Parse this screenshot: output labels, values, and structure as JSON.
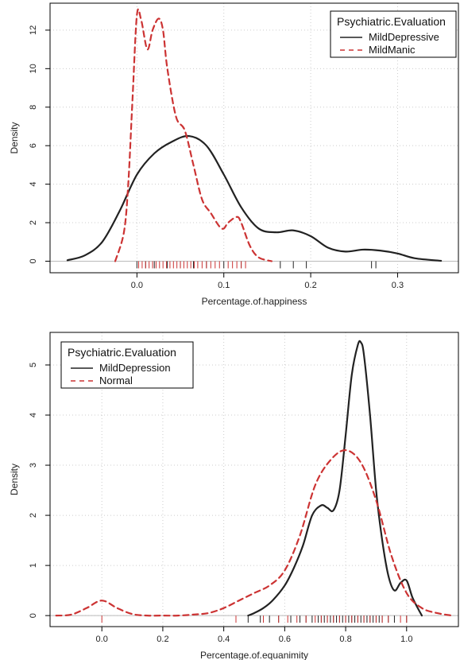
{
  "colors": {
    "series_solid": "#222222",
    "series_dashed": "#cc3333",
    "grid": "#cccccc",
    "baseline": "#bbbbbb"
  },
  "chart_data": [
    {
      "type": "line",
      "xlabel": "Percentage.of.happiness",
      "ylabel": "Density",
      "xlim": [
        -0.1,
        0.37
      ],
      "ylim": [
        -0.6,
        13.4
      ],
      "xticks": [
        0.0,
        0.1,
        0.2,
        0.3
      ],
      "xtick_labels": [
        "0.0",
        "0.1",
        "0.2",
        "0.3"
      ],
      "yticks": [
        0,
        2,
        4,
        6,
        8,
        10,
        12
      ],
      "ytick_labels": [
        "0",
        "2",
        "4",
        "6",
        "8",
        "10",
        "12"
      ],
      "grid": true,
      "legend": {
        "title": "Psychiatric.Evaluation",
        "position": "top-right"
      },
      "series": [
        {
          "name": "MildDepressive",
          "style": "solid",
          "x": [
            -0.08,
            -0.06,
            -0.04,
            -0.02,
            0.0,
            0.02,
            0.04,
            0.06,
            0.08,
            0.1,
            0.12,
            0.14,
            0.16,
            0.18,
            0.2,
            0.22,
            0.24,
            0.26,
            0.28,
            0.3,
            0.32,
            0.35
          ],
          "y": [
            0.05,
            0.3,
            1.0,
            2.6,
            4.5,
            5.6,
            6.2,
            6.5,
            6.0,
            4.5,
            2.8,
            1.7,
            1.5,
            1.6,
            1.3,
            0.7,
            0.5,
            0.6,
            0.55,
            0.4,
            0.15,
            0.02
          ]
        },
        {
          "name": "MildManic",
          "style": "dashed",
          "x": [
            -0.025,
            -0.015,
            -0.01,
            -0.005,
            0.0,
            0.005,
            0.012,
            0.018,
            0.025,
            0.03,
            0.035,
            0.045,
            0.055,
            0.065,
            0.075,
            0.085,
            0.095,
            0.1,
            0.105,
            0.115,
            0.12,
            0.13,
            0.14,
            0.155
          ],
          "y": [
            0.0,
            1.5,
            4.0,
            8.5,
            12.8,
            12.5,
            11.0,
            12.0,
            12.6,
            12.0,
            10.0,
            7.5,
            6.8,
            5.0,
            3.2,
            2.5,
            1.8,
            1.7,
            2.0,
            2.3,
            2.0,
            0.8,
            0.2,
            0.0
          ]
        }
      ],
      "rug": {
        "solid": [
          0.0,
          0.01,
          0.02,
          0.035,
          0.05,
          0.065,
          0.08,
          0.1,
          0.12,
          0.165,
          0.18,
          0.195,
          0.27,
          0.275
        ],
        "dashed": [
          0.002,
          0.006,
          0.01,
          0.014,
          0.018,
          0.022,
          0.026,
          0.03,
          0.034,
          0.038,
          0.042,
          0.046,
          0.05,
          0.054,
          0.058,
          0.062,
          0.066,
          0.07,
          0.075,
          0.08,
          0.085,
          0.09,
          0.095,
          0.105,
          0.11,
          0.115,
          0.12,
          0.125
        ]
      }
    },
    {
      "type": "line",
      "xlabel": "Percentage.of.equanimity",
      "ylabel": "Density",
      "xlim": [
        -0.17,
        1.17
      ],
      "ylim": [
        -0.22,
        5.65
      ],
      "xticks": [
        0.0,
        0.2,
        0.4,
        0.6,
        0.8,
        1.0
      ],
      "xtick_labels": [
        "0.0",
        "0.2",
        "0.4",
        "0.6",
        "0.8",
        "1.0"
      ],
      "yticks": [
        0,
        1,
        2,
        3,
        4,
        5
      ],
      "ytick_labels": [
        "0",
        "1",
        "2",
        "3",
        "4",
        "5"
      ],
      "grid": true,
      "legend": {
        "title": "Psychiatric.Evaluation",
        "position": "top-left"
      },
      "series": [
        {
          "name": "MildDepression",
          "style": "solid",
          "x": [
            0.48,
            0.5,
            0.53,
            0.56,
            0.6,
            0.63,
            0.66,
            0.69,
            0.72,
            0.74,
            0.76,
            0.78,
            0.8,
            0.82,
            0.84,
            0.85,
            0.86,
            0.88,
            0.9,
            0.92,
            0.94,
            0.96,
            0.98,
            1.0,
            1.02,
            1.05
          ],
          "y": [
            0.0,
            0.05,
            0.15,
            0.3,
            0.6,
            0.95,
            1.4,
            2.0,
            2.2,
            2.15,
            2.1,
            2.5,
            3.6,
            4.8,
            5.4,
            5.45,
            5.2,
            4.0,
            2.5,
            1.5,
            0.8,
            0.5,
            0.65,
            0.7,
            0.35,
            0.0
          ]
        },
        {
          "name": "Normal",
          "style": "dashed",
          "x": [
            -0.15,
            -0.1,
            -0.05,
            0.0,
            0.05,
            0.1,
            0.15,
            0.2,
            0.25,
            0.3,
            0.35,
            0.4,
            0.45,
            0.5,
            0.55,
            0.6,
            0.65,
            0.7,
            0.75,
            0.8,
            0.85,
            0.9,
            0.95,
            1.0,
            1.05,
            1.1,
            1.15
          ],
          "y": [
            0.0,
            0.02,
            0.15,
            0.3,
            0.15,
            0.03,
            0.0,
            0.0,
            0.0,
            0.02,
            0.05,
            0.15,
            0.3,
            0.45,
            0.6,
            0.9,
            1.6,
            2.6,
            3.1,
            3.3,
            3.05,
            2.3,
            1.2,
            0.45,
            0.15,
            0.05,
            0.0
          ]
        }
      ],
      "rug": {
        "solid": [
          0.48,
          0.52,
          0.55,
          0.58,
          0.62,
          0.65,
          0.67,
          0.69,
          0.71,
          0.72,
          0.73,
          0.74,
          0.75,
          0.76,
          0.77,
          0.78,
          0.79,
          0.8,
          0.81,
          0.82,
          0.83,
          0.84,
          0.85,
          0.86,
          0.87,
          0.88,
          0.89,
          0.9,
          0.91,
          0.92,
          0.94,
          0.96,
          1.0
        ],
        "dashed": [
          0.0,
          0.44,
          0.53,
          0.58,
          0.61,
          0.64,
          0.67,
          0.7,
          0.72,
          0.74,
          0.76,
          0.78,
          0.8,
          0.82,
          0.84,
          0.86,
          0.88,
          0.9,
          0.92,
          0.94,
          0.98,
          1.0
        ]
      }
    }
  ]
}
